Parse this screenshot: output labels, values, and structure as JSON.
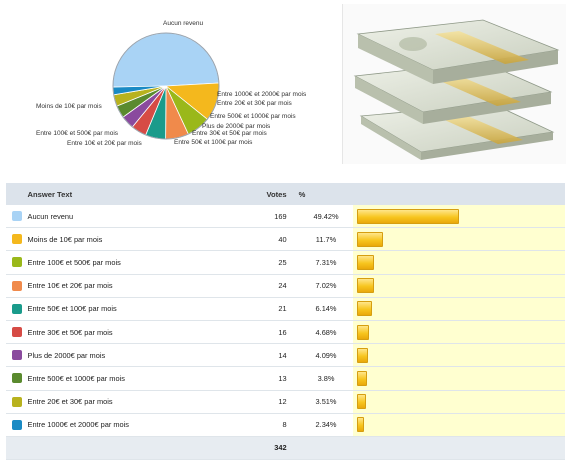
{
  "header": {
    "answer_text": "Answer Text",
    "votes": "Votes",
    "percent": "%"
  },
  "total_votes": "342",
  "chart_data": {
    "type": "pie",
    "categories": [
      "Aucun revenu",
      "Moins de 10€ par mois",
      "Entre 100€ et 500€ par mois",
      "Entre 10€ et 20€ par mois",
      "Entre 50€ et 100€ par mois",
      "Entre 30€ et 50€ par mois",
      "Plus de 2000€ par mois",
      "Entre 500€ et 1000€ par mois",
      "Entre 20€ et 30€ par mois",
      "Entre 1000€ et 2000€ par mois"
    ],
    "values": [
      169,
      40,
      25,
      24,
      21,
      16,
      14,
      13,
      12,
      8
    ],
    "percent_labels": [
      "49.42%",
      "11.7%",
      "7.31%",
      "7.02%",
      "6.14%",
      "4.68%",
      "4.09%",
      "3.8%",
      "3.51%",
      "2.34%"
    ],
    "percents": [
      49.42,
      11.7,
      7.31,
      7.02,
      6.14,
      4.68,
      4.09,
      3.8,
      3.51,
      2.34
    ],
    "colors": [
      "#a9d3f5",
      "#f4b81d",
      "#9ab81a",
      "#f08a4b",
      "#1a9b8b",
      "#d64b45",
      "#8a4a9e",
      "#5a8a2e",
      "#b8b21e",
      "#1a8ac4"
    ],
    "title": ""
  },
  "image": {
    "name": "money-stack-image"
  }
}
